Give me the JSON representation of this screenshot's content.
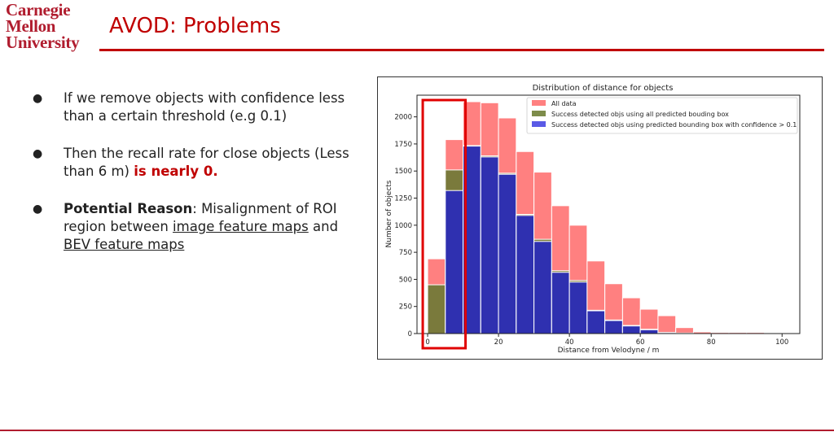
{
  "logo": {
    "line1": "Carnegie",
    "line2": "Mellon",
    "line3": "University"
  },
  "slide": {
    "title": "AVOD: Problems"
  },
  "bullets": [
    {
      "text": "If we remove objects with confidence less than a certain threshold (e.g 0.1)"
    },
    {
      "text": "Then the recall rate for close objects (Less than 6 m) ",
      "emphasis": "is nearly 0."
    },
    {
      "bold": "Potential Reason",
      "text": ": Misalignment of ROI region between ",
      "link1": "image feature maps",
      "mid": " and ",
      "link2": "BEV feature maps"
    }
  ],
  "colors": {
    "accent": "#c00000",
    "all": "#ff8080",
    "green": "#7d8c4a",
    "blue": "#2f30b0",
    "olive": "#7a7a3c"
  },
  "chart_data": {
    "type": "bar",
    "title": "Distribution of distance for objects",
    "xlabel": "Distance from Velodyne / m",
    "ylabel": "Number of objects",
    "xlim": [
      -3,
      105
    ],
    "ylim": [
      0,
      2200
    ],
    "xticks": [
      0,
      20,
      40,
      60,
      80,
      100
    ],
    "yticks": [
      0,
      250,
      500,
      750,
      1000,
      1250,
      1500,
      1750,
      2000
    ],
    "bin_starts": [
      0,
      5,
      10,
      15,
      20,
      25,
      30,
      35,
      40,
      45,
      50,
      55,
      60,
      65,
      70,
      75,
      80,
      85,
      90,
      95,
      100
    ],
    "bin_width": 5,
    "legend_position": "top-right",
    "series": [
      {
        "name": "All data",
        "values": [
          690,
          1790,
          2140,
          2130,
          1990,
          1680,
          1490,
          1180,
          1000,
          670,
          460,
          330,
          225,
          165,
          55,
          15,
          10,
          10,
          10,
          5,
          0
        ]
      },
      {
        "name": "Success detected objs using all predicted bouding box",
        "values": [
          450,
          1510,
          1735,
          1640,
          1480,
          1100,
          870,
          580,
          490,
          215,
          125,
          75,
          40,
          10,
          5,
          0,
          0,
          0,
          0,
          0,
          0
        ]
      },
      {
        "name": "Success detected objs using predicted bounding box with confidence > 0.1",
        "values": [
          0,
          1320,
          1730,
          1630,
          1470,
          1090,
          850,
          565,
          475,
          210,
          120,
          70,
          35,
          8,
          3,
          0,
          0,
          0,
          0,
          0,
          0
        ]
      }
    ],
    "highlight_range": [
      0,
      10
    ]
  }
}
